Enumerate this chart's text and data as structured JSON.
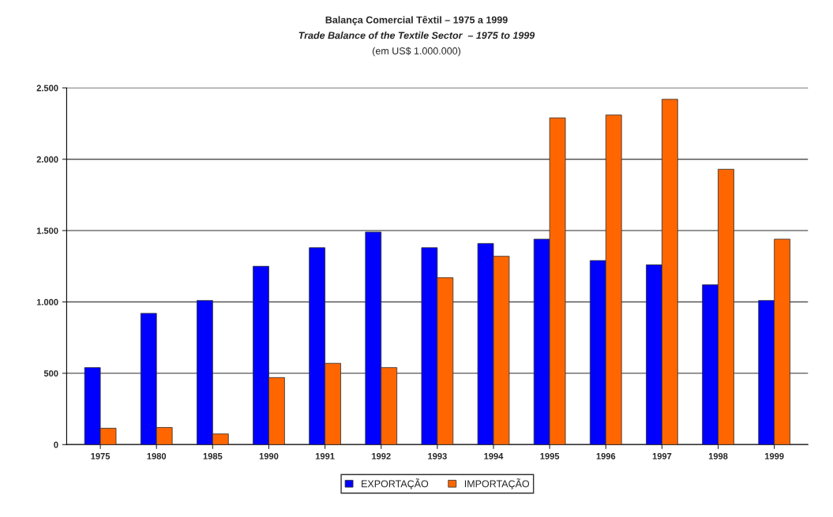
{
  "chart_data": {
    "type": "bar",
    "title": "Balança Comercial Têxtil – 1975 a 1999",
    "subtitle": "Trade Balance of the Textile Sector  – 1975 to 1999",
    "annotations": [
      "(em US$ 1.000.000)"
    ],
    "categories": [
      "1975",
      "1980",
      "1985",
      "1990",
      "1991",
      "1992",
      "1993",
      "1994",
      "1995",
      "1996",
      "1997",
      "1998",
      "1999"
    ],
    "series": [
      {
        "name": "EXPORTAÇÃO",
        "color": "#0000ff",
        "values": [
          540,
          920,
          1010,
          1250,
          1380,
          1490,
          1380,
          1410,
          1440,
          1290,
          1260,
          1120,
          1010
        ]
      },
      {
        "name": "IMPORTAÇÃO",
        "color": "#ff6600",
        "values": [
          115,
          120,
          75,
          470,
          570,
          540,
          1170,
          1320,
          2290,
          2310,
          2420,
          1930,
          1440
        ]
      }
    ],
    "ylim": [
      0,
      2500
    ],
    "yticks": [
      0,
      {
        "value": 500,
        "label": "500"
      },
      {
        "value": 1000,
        "label": "1.000"
      },
      {
        "value": 1500,
        "label": "1.500"
      },
      {
        "value": 2000,
        "label": "2.000"
      },
      {
        "value": 2500,
        "label": "2.500"
      }
    ],
    "grid": "y",
    "legend": "bottom"
  }
}
